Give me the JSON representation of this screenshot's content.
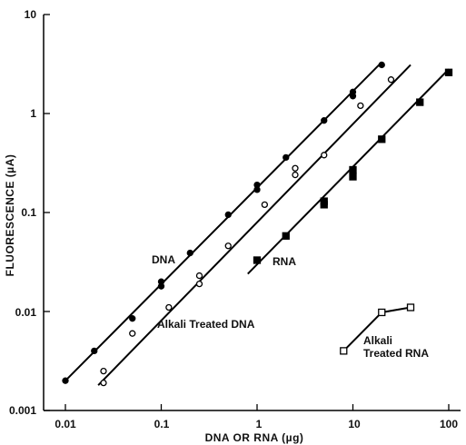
{
  "chart_data": {
    "type": "scatter",
    "title": "",
    "xlabel": "DNA OR RNA (µg)",
    "ylabel": "FLUORESCENCE (µA)",
    "x_scale": "log",
    "y_scale": "log",
    "xlim": [
      0.006,
      150
    ],
    "ylim": [
      0.001,
      10
    ],
    "x_ticks": [
      0.01,
      0.1,
      1,
      10,
      100
    ],
    "x_tick_labels": [
      "0.01",
      "0.1",
      "1",
      "10",
      "100"
    ],
    "y_ticks": [
      0.001,
      0.01,
      0.1,
      1,
      10
    ],
    "y_tick_labels": [
      "0.001",
      "0.01",
      "0.1",
      "1",
      "10"
    ],
    "grid": false,
    "series": [
      {
        "name": "DNA",
        "marker": "filled-circle",
        "points": [
          [
            0.01,
            0.002
          ],
          [
            0.02,
            0.004
          ],
          [
            0.05,
            0.0085
          ],
          [
            0.1,
            0.018
          ],
          [
            0.1,
            0.02
          ],
          [
            0.2,
            0.039
          ],
          [
            0.5,
            0.095
          ],
          [
            1,
            0.17
          ],
          [
            1,
            0.19
          ],
          [
            2,
            0.36
          ],
          [
            5,
            0.85
          ],
          [
            10,
            1.5
          ],
          [
            10,
            1.65
          ],
          [
            20,
            3.1
          ]
        ],
        "fit_line": [
          [
            0.01,
            0.002
          ],
          [
            20,
            3.3
          ]
        ]
      },
      {
        "name": "Alkali Treated DNA",
        "marker": "open-circle",
        "points": [
          [
            0.025,
            0.0019
          ],
          [
            0.025,
            0.0025
          ],
          [
            0.05,
            0.006
          ],
          [
            0.12,
            0.011
          ],
          [
            0.25,
            0.019
          ],
          [
            0.25,
            0.023
          ],
          [
            0.5,
            0.046
          ],
          [
            1.2,
            0.12
          ],
          [
            2.5,
            0.24
          ],
          [
            2.5,
            0.28
          ],
          [
            5,
            0.38
          ],
          [
            12,
            1.2
          ],
          [
            25,
            2.2
          ]
        ],
        "fit_line": [
          [
            0.022,
            0.0018
          ],
          [
            40,
            3.1
          ]
        ]
      },
      {
        "name": "RNA",
        "marker": "filled-square",
        "points": [
          [
            1,
            0.033
          ],
          [
            2,
            0.058
          ],
          [
            5,
            0.12
          ],
          [
            5,
            0.13
          ],
          [
            10,
            0.23
          ],
          [
            10,
            0.27
          ],
          [
            20,
            0.55
          ],
          [
            50,
            1.3
          ],
          [
            100,
            2.6
          ]
        ],
        "fit_line": [
          [
            0.8,
            0.024
          ],
          [
            100,
            2.8
          ]
        ]
      },
      {
        "name": "Alkali Treated RNA",
        "marker": "open-square",
        "points": [
          [
            8,
            0.004
          ],
          [
            20,
            0.0098
          ],
          [
            40,
            0.011
          ]
        ],
        "fit_line": [
          [
            8,
            0.004
          ],
          [
            20,
            0.0098
          ],
          [
            40,
            0.011
          ]
        ]
      }
    ],
    "annotations": [
      {
        "text": "DNA",
        "series": "DNA"
      },
      {
        "text": "Alkali Treated DNA",
        "series": "Alkali Treated DNA"
      },
      {
        "text": "RNA",
        "series": "RNA"
      },
      {
        "text": "Alkali",
        "series": "Alkali Treated RNA"
      },
      {
        "text": "Treated RNA",
        "series": "Alkali Treated RNA"
      }
    ]
  }
}
